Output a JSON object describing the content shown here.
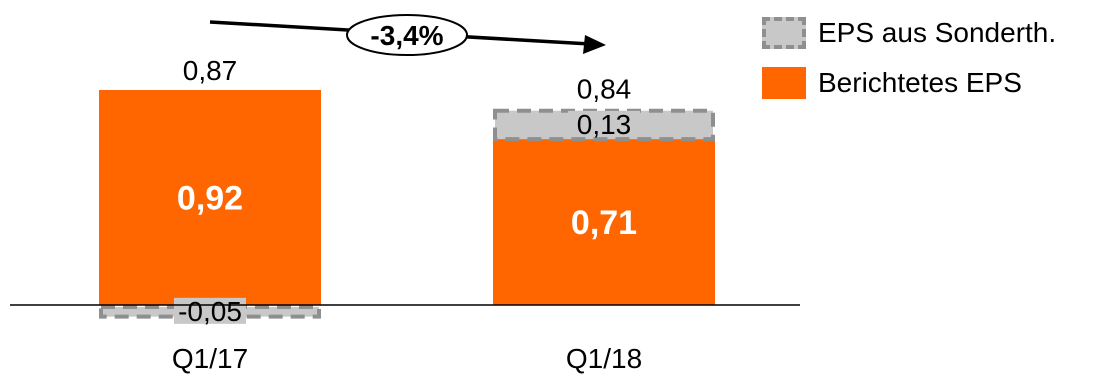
{
  "chart_data": {
    "type": "bar",
    "stacked": true,
    "categories": [
      "Q1/17",
      "Q1/18"
    ],
    "series": [
      {
        "name": "Berichtetes EPS",
        "values": [
          0.92,
          0.71
        ],
        "color": "#ff6600"
      },
      {
        "name": "EPS aus Sonderth.",
        "values": [
          -0.05,
          0.13
        ],
        "color": "#c8c8c8",
        "style": "dashed-border"
      }
    ],
    "totals": [
      "0,87",
      "0,84"
    ],
    "value_labels": {
      "Berichtetes EPS": [
        "0,92",
        "0,71"
      ],
      "EPS aus Sonderth.": [
        "-0,05",
        "0,13"
      ]
    },
    "change_annotation": "-3,4%",
    "legend_position": "top-right",
    "grid": false
  }
}
